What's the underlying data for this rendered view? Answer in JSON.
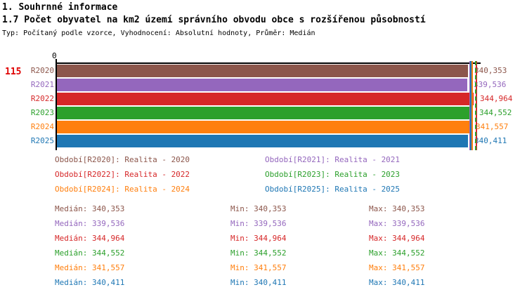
{
  "header": {
    "section_title": "1. Souhrnné informace",
    "chart_title": "1.7 Počet obyvatel na km2 území správního obvodu obce s rozšířenou působností",
    "meta": "Typ: Počítaný podle vzorce, Vyhodnocení: Absolutní hodnoty, Průměr: Medián"
  },
  "chart_data": {
    "type": "bar",
    "orientation": "horizontal",
    "title": "1.7 Počet obyvatel na km2 území správního obvodu obce s rozšířenou působností",
    "x_axis_origin_label": "0",
    "row_highlight_value": "115",
    "highlight_color": "#e00000",
    "xlim": [
      0,
      344964
    ],
    "grid": false,
    "legend_position": "below",
    "categories": [
      "R2020",
      "R2021",
      "R2022",
      "R2023",
      "R2024",
      "R2025"
    ],
    "values": [
      340353,
      339536,
      344964,
      344552,
      341557,
      340411
    ],
    "value_labels": [
      "340,353",
      "339,536",
      "344,964",
      "344,552",
      "341,557",
      "340,411"
    ],
    "series_colors": [
      "#8c564b",
      "#9467bd",
      "#d62728",
      "#2ca02c",
      "#ff7f0e",
      "#1f77b4"
    ]
  },
  "legend": {
    "columns": [
      [
        {
          "label": "Období[R2020]: Realita - 2020",
          "color": "#8c564b"
        },
        {
          "label": "Období[R2022]: Realita - 2022",
          "color": "#d62728"
        },
        {
          "label": "Období[R2024]: Realita - 2024",
          "color": "#ff7f0e"
        }
      ],
      [
        {
          "label": "Období[R2021]: Realita - 2021",
          "color": "#9467bd"
        },
        {
          "label": "Období[R2023]: Realita - 2023",
          "color": "#2ca02c"
        },
        {
          "label": "Období[R2025]: Realita - 2025",
          "color": "#1f77b4"
        }
      ]
    ]
  },
  "stats": {
    "median_prefix": "Medián",
    "min_prefix": "Min",
    "max_prefix": "Max",
    "rows": [
      {
        "color": "#8c564b",
        "median": "340,353",
        "min": "340,353",
        "max": "340,353"
      },
      {
        "color": "#9467bd",
        "median": "339,536",
        "min": "339,536",
        "max": "339,536"
      },
      {
        "color": "#d62728",
        "median": "344,964",
        "min": "344,964",
        "max": "344,964"
      },
      {
        "color": "#2ca02c",
        "median": "344,552",
        "min": "344,552",
        "max": "344,552"
      },
      {
        "color": "#ff7f0e",
        "median": "341,557",
        "min": "341,557",
        "max": "341,557"
      },
      {
        "color": "#1f77b4",
        "median": "340,411",
        "min": "340,411",
        "max": "340,411"
      }
    ]
  }
}
